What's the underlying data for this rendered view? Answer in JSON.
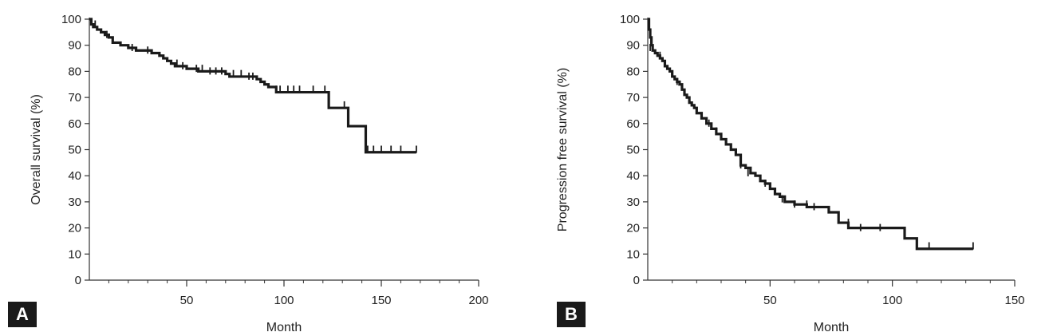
{
  "panels": [
    {
      "label": "A"
    },
    {
      "label": "B"
    }
  ],
  "chart_data": [
    {
      "type": "line",
      "panel": "A",
      "xlabel": "Month",
      "ylabel": "Overall survival (%)",
      "xlim": [
        0,
        200
      ],
      "ylim": [
        0,
        100
      ],
      "xticks": [
        50,
        100,
        150,
        200
      ],
      "yticks": [
        0,
        10,
        20,
        30,
        40,
        50,
        60,
        70,
        80,
        90,
        100
      ],
      "grid": false,
      "series": [
        {
          "step": true,
          "x": [
            0,
            1,
            2,
            4,
            6,
            8,
            10,
            12,
            16,
            20,
            24,
            28,
            32,
            36,
            38,
            40,
            42,
            44,
            50,
            56,
            60,
            66,
            70,
            72,
            80,
            86,
            88,
            90,
            92,
            96,
            100,
            110,
            122,
            123,
            133,
            140,
            142,
            150,
            160,
            168
          ],
          "y": [
            100,
            98,
            97,
            96,
            95,
            94,
            93,
            91,
            90,
            89,
            88,
            88,
            87,
            86,
            85,
            84,
            83,
            82,
            81,
            80,
            80,
            80,
            79,
            78,
            78,
            77,
            76,
            75,
            74,
            72,
            72,
            72,
            72,
            66,
            59,
            59,
            49,
            49,
            49,
            49
          ]
        }
      ],
      "censor_x": [
        3,
        9,
        22,
        30,
        45,
        48,
        55,
        58,
        62,
        65,
        68,
        74,
        78,
        82,
        84,
        96,
        98,
        102,
        105,
        108,
        115,
        121,
        131,
        143,
        146,
        150,
        155,
        160,
        168
      ],
      "censor_y": [
        98,
        94,
        89,
        88,
        83,
        82,
        81,
        81,
        80,
        80,
        80,
        79,
        79,
        78,
        78,
        73,
        73,
        73,
        73,
        73,
        73,
        73,
        67,
        50,
        50,
        50,
        50,
        50,
        50
      ]
    },
    {
      "type": "line",
      "panel": "B",
      "xlabel": "Month",
      "ylabel": "Progression free survival (%)",
      "xlim": [
        0,
        150
      ],
      "ylim": [
        0,
        100
      ],
      "xticks": [
        50,
        100,
        150
      ],
      "yticks": [
        0,
        10,
        20,
        30,
        40,
        50,
        60,
        70,
        80,
        90,
        100
      ],
      "grid": false,
      "series": [
        {
          "step": true,
          "x": [
            0,
            0.5,
            1,
            1.5,
            2,
            3,
            4,
            5,
            6,
            7,
            8,
            9,
            10,
            11,
            12,
            13,
            14,
            15,
            16,
            17,
            18,
            19,
            20,
            22,
            24,
            26,
            28,
            30,
            32,
            34,
            36,
            38,
            40,
            42,
            44,
            46,
            48,
            50,
            52,
            54,
            56,
            60,
            65,
            70,
            74,
            78,
            82,
            90,
            100,
            105,
            110,
            133
          ],
          "y": [
            100,
            96,
            93,
            90,
            88,
            87,
            86,
            85,
            84,
            82,
            81,
            80,
            78,
            77,
            76,
            75,
            73,
            71,
            70,
            68,
            67,
            66,
            64,
            62,
            60,
            58,
            56,
            54,
            52,
            50,
            48,
            44,
            43,
            41,
            40,
            38,
            37,
            35,
            33,
            32,
            30,
            29,
            28,
            28,
            26,
            22,
            20,
            20,
            20,
            16,
            12,
            12
          ]
        }
      ],
      "censor_x": [
        1,
        5,
        12,
        25,
        28,
        38,
        41,
        48,
        55,
        60,
        65,
        68,
        82,
        87,
        95,
        115,
        133
      ],
      "censor_y": [
        89,
        86,
        76,
        60,
        57,
        44,
        41,
        37,
        31,
        29,
        29,
        28,
        22,
        20,
        20,
        13,
        13
      ]
    }
  ]
}
